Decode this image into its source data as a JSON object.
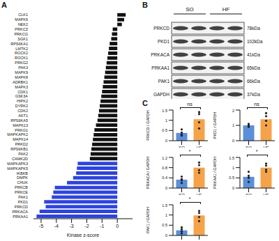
{
  "panel_labels": [
    "A",
    "B",
    "C"
  ],
  "chart_data": [
    {
      "type": "bar",
      "orientation": "horizontal",
      "xlabel": "Kinase z-score",
      "categories": [
        "CLK1",
        "MAPK6",
        "NEK2",
        "PRKCZ",
        "PRKCG",
        "SGK1",
        "RPS6KA1",
        "LMTK2",
        "ROCK2",
        "ROCK1",
        "PRKG2",
        "PAK3",
        "MAPK9",
        "MAPK8",
        "ADRBK1",
        "MAPK3",
        "CDK1",
        "GSK3A",
        "HIPK2",
        "DYRK2",
        "CDK2",
        "AKT1",
        "RPS6KA5",
        "MAPK13",
        "PRKG1",
        "MAPKAPK2",
        "MAPK14",
        "PRKD2",
        "RPS6KB1",
        "PAK2",
        "CAMK2D",
        "MAPKAPK3",
        "MAPKAPK5",
        "IKBKB",
        "DMPK",
        "CHUK",
        "PRKCB",
        "PRKCE",
        "PAK1",
        "PKD1",
        "PRKCD",
        "PRKACA",
        "PRKAA1"
      ],
      "values": [
        0.55,
        0.45,
        0.3,
        -0.3,
        -0.35,
        -0.4,
        -0.5,
        -0.55,
        -0.6,
        -0.65,
        -0.7,
        -0.75,
        -0.8,
        -0.85,
        -0.9,
        -0.95,
        -1.0,
        -1.05,
        -1.1,
        -1.15,
        -1.2,
        -1.25,
        -1.3,
        -1.4,
        -1.5,
        -1.55,
        -1.6,
        -1.65,
        -1.7,
        -1.75,
        -1.8,
        -2.6,
        -2.65,
        -2.7,
        -2.9,
        -3.3,
        -4.1,
        -4.2,
        -4.3,
        -4.8,
        -4.7,
        -5.1,
        -5.3
      ],
      "colors": [
        "#111111",
        "#111111",
        "#111111",
        "#111111",
        "#111111",
        "#111111",
        "#111111",
        "#111111",
        "#111111",
        "#111111",
        "#111111",
        "#111111",
        "#111111",
        "#111111",
        "#111111",
        "#111111",
        "#111111",
        "#111111",
        "#111111",
        "#111111",
        "#111111",
        "#111111",
        "#111111",
        "#111111",
        "#111111",
        "#111111",
        "#111111",
        "#111111",
        "#111111",
        "#111111",
        "#111111",
        "#2e44dc",
        "#2e44dc",
        "#2e44dc",
        "#2e44dc",
        "#2e44dc",
        "#2e44dc",
        "#2e44dc",
        "#2e44dc",
        "#2e44dc",
        "#2e44dc",
        "#2e44dc",
        "#2e44dc"
      ],
      "xlim": [
        -5.5,
        1
      ],
      "xticks": [
        -5,
        -4,
        -3,
        -2,
        -1,
        0
      ]
    },
    {
      "type": "bar",
      "ylabel": "PRKCD / GAPDH",
      "annotation": "ns",
      "categories": [
        "SO",
        "HF"
      ],
      "values": [
        0.38,
        1.05
      ],
      "points": [
        [
          0.25,
          0.3,
          0.4,
          0.55
        ],
        [
          0.6,
          0.9,
          1.3,
          1.4
        ]
      ],
      "colors": [
        "#5b8fd9",
        "#f5a34b"
      ],
      "ylim": [
        0,
        1.5
      ],
      "yticks": [
        0,
        0.5,
        1,
        1.5
      ]
    },
    {
      "type": "bar",
      "ylabel": "PKD1 / GAPDH",
      "annotation": "ns",
      "categories": [
        "SO",
        "HF"
      ],
      "values": [
        1.0,
        1.4
      ],
      "points": [
        [
          0.9,
          1.0,
          1.0,
          1.1
        ],
        [
          1.0,
          1.3,
          1.6,
          1.8
        ]
      ],
      "colors": [
        "#5b8fd9",
        "#f5a34b"
      ],
      "ylim": [
        0,
        2
      ],
      "yticks": [
        0,
        1,
        2
      ]
    },
    {
      "type": "bar",
      "ylabel": "PRKACA / GAPDH",
      "annotation": "*",
      "categories": [
        "SO",
        "HF"
      ],
      "values": [
        0.33,
        0.8
      ],
      "points": [
        [
          0.2,
          0.3,
          0.35,
          0.45
        ],
        [
          0.6,
          0.7,
          0.9,
          1.0
        ]
      ],
      "colors": [
        "#5b8fd9",
        "#f5a34b"
      ],
      "ylim": [
        0,
        1.2
      ],
      "yticks": [
        0,
        0.4,
        0.8,
        1.2
      ]
    },
    {
      "type": "bar",
      "ylabel": "PRKAA1 / GAPDH",
      "annotation": "*",
      "categories": [
        "SO",
        "HF"
      ],
      "values": [
        0.55,
        1.0
      ],
      "points": [
        [
          0.3,
          0.5,
          0.6,
          0.8
        ],
        [
          0.8,
          0.9,
          1.1,
          1.2
        ]
      ],
      "colors": [
        "#5b8fd9",
        "#f5a34b"
      ],
      "ylim": [
        0,
        1.5
      ],
      "yticks": [
        0,
        0.5,
        1,
        1.5
      ]
    },
    {
      "type": "bar",
      "ylabel": "PAK1 / GAPDH",
      "annotation": "*",
      "categories": [
        "SO",
        "HF"
      ],
      "values": [
        0.25,
        0.98
      ],
      "points": [
        [
          0.1,
          0.2,
          0.3,
          0.4
        ],
        [
          0.7,
          0.9,
          1.1,
          1.2
        ]
      ],
      "colors": [
        "#5b8fd9",
        "#f5a34b"
      ],
      "ylim": [
        0,
        1.5
      ],
      "yticks": [
        0,
        0.5,
        1,
        1.5
      ]
    }
  ],
  "blot": {
    "groups": [
      "SO",
      "HF"
    ],
    "rows": [
      {
        "protein": "PRKCD",
        "size": "78kDa"
      },
      {
        "protein": "PKD1",
        "size": "102kDa"
      },
      {
        "protein": "PRKACA",
        "size": "41kDa"
      },
      {
        "protein": "PRKAA1",
        "size": "65kDa"
      },
      {
        "protein": "PAK1",
        "size": "66kDa"
      },
      {
        "protein": "GAPDH",
        "size": "37kDa"
      }
    ]
  }
}
